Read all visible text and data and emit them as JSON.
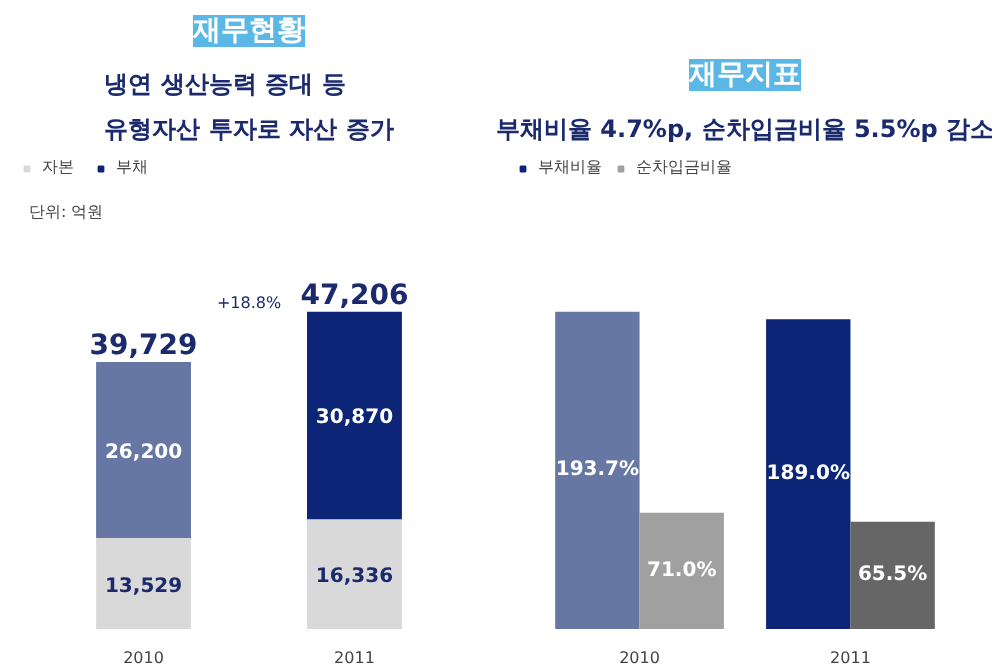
{
  "chart_data": [
    {
      "type": "bar",
      "title": "재무현황",
      "subtitle": "냉연 생산능력 증대 등\n유형자산 투자로 자산 증가",
      "categories": [
        "2010",
        "2011"
      ],
      "stacked": true,
      "legend": "top left",
      "data_labels": true,
      "series": [
        {
          "name": "자본",
          "color": "#d9d9d9",
          "colors": [
            "#d9d9d9",
            "#d9d9d9"
          ],
          "values": [
            13529,
            16336
          ],
          "value_labels": [
            "13,529",
            "16,336"
          ]
        },
        {
          "name": "부채",
          "color": "#0c2577",
          "colors": [
            "#6677a3",
            "#0c2577"
          ],
          "values": [
            26200,
            30870
          ],
          "value_labels": [
            "26,200",
            "30,870"
          ]
        }
      ],
      "totals": [
        "39,729",
        "47,206"
      ],
      "annotations": [
        "단위: 억원",
        "+18.8%"
      ]
    },
    {
      "type": "bar",
      "title": "재무지표",
      "subtitle": "부채비율 4.7%p, 순차입금비율 5.5%p 감소",
      "categories": [
        "2010",
        "2011"
      ],
      "legend": "top left",
      "data_labels": true,
      "series": [
        {
          "name": "부채비율",
          "color": "#0c2577",
          "colors": [
            "#6677a3",
            "#0c2577"
          ],
          "values": [
            193.7,
            189.0
          ],
          "value_labels": [
            "193.7%",
            "189.0%"
          ]
        },
        {
          "name": "순차입금비율",
          "color": "#a0a0a0",
          "colors": [
            "#a0a0a0",
            "#666666"
          ],
          "values": [
            71.0,
            65.5
          ],
          "value_labels": [
            "71.0%",
            "65.5%"
          ]
        }
      ]
    }
  ]
}
